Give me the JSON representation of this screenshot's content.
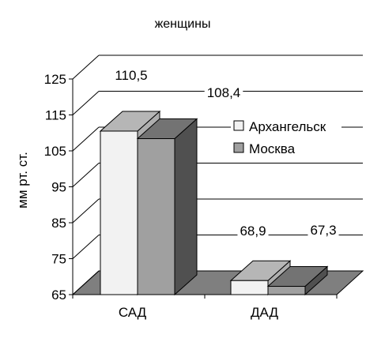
{
  "chart_data": {
    "type": "bar",
    "title": "женщины",
    "xlabel": "",
    "ylabel": "мм рт. ст.",
    "categories": [
      "САД",
      "ДАД"
    ],
    "series": [
      {
        "name": "Архангельск",
        "values": [
          110.5,
          68.9
        ],
        "labels": [
          "110,5",
          "68,9"
        ],
        "color": "#f2f2f2"
      },
      {
        "name": "Москва",
        "values": [
          108.4,
          67.3
        ],
        "labels": [
          "108,4",
          "67,3"
        ],
        "color": "#a0a0a0"
      }
    ],
    "ylim": [
      65,
      125
    ],
    "yticks": [
      65,
      75,
      85,
      95,
      105,
      115,
      125
    ],
    "ytick_labels": [
      "65",
      "75",
      "85",
      "95",
      "105",
      "115",
      "125"
    ],
    "grid": true,
    "legend": "right",
    "style": "3d-column",
    "colors": {
      "floor": "#7f7f7f",
      "grid": "#000000",
      "axis": "#000000"
    }
  }
}
